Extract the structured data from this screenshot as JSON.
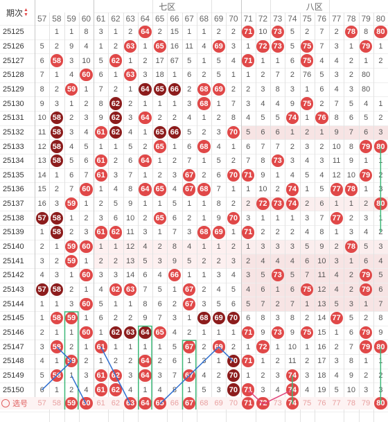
{
  "header": {
    "period_label": "期次",
    "zone7_label": "七区",
    "zone8_label": "八区",
    "columns": [
      "57",
      "58",
      "59",
      "60",
      "61",
      "62",
      "63",
      "64",
      "65",
      "66",
      "67",
      "68",
      "69",
      "70",
      "71",
      "72",
      "73",
      "74",
      "75",
      "76",
      "77",
      "78",
      "79",
      "80"
    ]
  },
  "footer": {
    "label": "选号",
    "selected": [
      "59",
      "60",
      "63",
      "64",
      "65",
      "67",
      "71",
      "72",
      "74",
      "80"
    ]
  },
  "rows": [
    {
      "period": "25125",
      "v": [
        "",
        "1",
        "1",
        "8",
        "3",
        "1",
        "2",
        "64",
        "2",
        "15",
        "1",
        "1",
        "2",
        "2",
        "71",
        "10",
        "73",
        "5",
        "2",
        "7",
        "2",
        "78",
        "8",
        "80"
      ]
    },
    {
      "period": "25126",
      "v": [
        "5",
        "2",
        "9",
        "4",
        "1",
        "2",
        "63",
        "1",
        "65",
        "16",
        "11",
        "4",
        "69",
        "3",
        "1",
        "72",
        "73",
        "5",
        "75",
        "7",
        "3",
        "1",
        "79",
        "1"
      ]
    },
    {
      "period": "25127",
      "v": [
        "6",
        "58",
        "3",
        "10",
        "5",
        "62",
        "1",
        "2",
        "17",
        "67",
        "5",
        "1",
        "5",
        "4",
        "71",
        "1",
        "1",
        "6",
        "75",
        "4",
        "4",
        "2",
        "1",
        "2"
      ]
    },
    {
      "period": "25128",
      "v": [
        "7",
        "1",
        "4",
        "60",
        "6",
        "1",
        "63",
        "3",
        "18",
        "1",
        "6",
        "2",
        "5",
        "1",
        "1",
        "2",
        "7",
        "2",
        "76",
        "5",
        "3",
        "2",
        "80",
        ""
      ]
    },
    {
      "period": "25129",
      "v": [
        "8",
        "2",
        "59",
        "1",
        "7",
        "2",
        "1",
        "64",
        "65",
        "66",
        "2",
        "68",
        "69",
        "2",
        "2",
        "3",
        "8",
        "3",
        "1",
        "6",
        "4",
        "3",
        "80",
        ""
      ]
    },
    {
      "period": "25130",
      "v": [
        "9",
        "3",
        "1",
        "2",
        "8",
        "62",
        "2",
        "1",
        "1",
        "1",
        "3",
        "68",
        "1",
        "7",
        "3",
        "4",
        "4",
        "9",
        "75",
        "2",
        "7",
        "5",
        "4",
        "1"
      ]
    },
    {
      "period": "25131",
      "v": [
        "10",
        "58",
        "2",
        "3",
        "9",
        "62",
        "3",
        "64",
        "2",
        "2",
        "4",
        "1",
        "2",
        "8",
        "4",
        "5",
        "5",
        "74",
        "1",
        "76",
        "8",
        "6",
        "5",
        "2"
      ]
    },
    {
      "period": "25132",
      "v": [
        "11",
        "58",
        "3",
        "4",
        "61",
        "62",
        "4",
        "1",
        "65",
        "66",
        "5",
        "2",
        "3",
        "70",
        "5",
        "6",
        "6",
        "1",
        "2",
        "1",
        "9",
        "7",
        "6",
        "3"
      ]
    },
    {
      "period": "25133",
      "v": [
        "12",
        "58",
        "4",
        "5",
        "1",
        "1",
        "5",
        "2",
        "65",
        "1",
        "6",
        "68",
        "4",
        "1",
        "6",
        "7",
        "7",
        "2",
        "3",
        "2",
        "10",
        "8",
        "79",
        "80"
      ]
    },
    {
      "period": "25134",
      "v": [
        "13",
        "58",
        "5",
        "6",
        "61",
        "2",
        "6",
        "64",
        "1",
        "2",
        "7",
        "1",
        "5",
        "2",
        "7",
        "8",
        "73",
        "3",
        "4",
        "3",
        "11",
        "9",
        "1",
        "1"
      ]
    },
    {
      "period": "25135",
      "v": [
        "14",
        "1",
        "6",
        "7",
        "61",
        "3",
        "7",
        "1",
        "2",
        "3",
        "67",
        "2",
        "6",
        "70",
        "71",
        "9",
        "1",
        "4",
        "5",
        "4",
        "12",
        "10",
        "79",
        "2"
      ]
    },
    {
      "period": "25136",
      "v": [
        "15",
        "2",
        "7",
        "60",
        "1",
        "4",
        "8",
        "64",
        "65",
        "4",
        "67",
        "68",
        "7",
        "1",
        "1",
        "10",
        "2",
        "74",
        "1",
        "5",
        "77",
        "78",
        "1",
        "3"
      ]
    },
    {
      "period": "25137",
      "v": [
        "16",
        "3",
        "59",
        "1",
        "2",
        "5",
        "9",
        "1",
        "1",
        "5",
        "1",
        "1",
        "8",
        "2",
        "2",
        "72",
        "73",
        "74",
        "2",
        "6",
        "1",
        "1",
        "2",
        "80"
      ]
    },
    {
      "period": "25138",
      "v": [
        "57",
        "58",
        "1",
        "2",
        "3",
        "6",
        "10",
        "2",
        "65",
        "6",
        "2",
        "1",
        "9",
        "70",
        "3",
        "1",
        "1",
        "1",
        "3",
        "7",
        "77",
        "2",
        "3",
        "1"
      ]
    },
    {
      "period": "25139",
      "v": [
        "1",
        "58",
        "2",
        "3",
        "61",
        "62",
        "11",
        "3",
        "1",
        "7",
        "3",
        "68",
        "69",
        "1",
        "71",
        "2",
        "2",
        "2",
        "4",
        "8",
        "1",
        "3",
        "4",
        "2"
      ]
    },
    {
      "period": "25140",
      "v": [
        "2",
        "1",
        "59",
        "60",
        "1",
        "1",
        "12",
        "4",
        "2",
        "8",
        "4",
        "1",
        "1",
        "2",
        "1",
        "3",
        "3",
        "3",
        "5",
        "9",
        "2",
        "78",
        "5",
        "3"
      ]
    },
    {
      "period": "25141",
      "v": [
        "3",
        "2",
        "59",
        "1",
        "2",
        "2",
        "13",
        "5",
        "3",
        "9",
        "5",
        "2",
        "2",
        "3",
        "2",
        "4",
        "4",
        "4",
        "6",
        "10",
        "3",
        "1",
        "6",
        "4"
      ]
    },
    {
      "period": "25142",
      "v": [
        "4",
        "3",
        "1",
        "60",
        "3",
        "3",
        "14",
        "6",
        "4",
        "66",
        "1",
        "1",
        "3",
        "4",
        "3",
        "5",
        "73",
        "5",
        "7",
        "11",
        "4",
        "2",
        "79",
        "5"
      ]
    },
    {
      "period": "25143",
      "v": [
        "57",
        "58",
        "2",
        "1",
        "4",
        "62",
        "63",
        "7",
        "5",
        "1",
        "67",
        "2",
        "4",
        "5",
        "4",
        "6",
        "1",
        "6",
        "75",
        "12",
        "4",
        "2",
        "79",
        "6"
      ]
    },
    {
      "period": "25144",
      "v": [
        "1",
        "1",
        "3",
        "60",
        "5",
        "1",
        "1",
        "8",
        "6",
        "2",
        "67",
        "3",
        "5",
        "6",
        "5",
        "7",
        "2",
        "7",
        "1",
        "13",
        "5",
        "3",
        "1",
        "7"
      ]
    },
    {
      "period": "25145",
      "v": [
        "1",
        "58",
        "59",
        "1",
        "6",
        "2",
        "2",
        "9",
        "7",
        "3",
        "1",
        "68",
        "69",
        "70",
        "6",
        "8",
        "3",
        "8",
        "2",
        "14",
        "77",
        "5",
        "2",
        "8"
      ]
    },
    {
      "period": "25146",
      "v": [
        "2",
        "1",
        "1",
        "60",
        "1",
        "62",
        "63",
        "64",
        "65",
        "4",
        "2",
        "1",
        "1",
        "1",
        "71",
        "9",
        "73",
        "9",
        "75",
        "15",
        "1",
        "6",
        "79",
        "9"
      ]
    },
    {
      "period": "25147",
      "v": [
        "3",
        "58",
        "2",
        "1",
        "61",
        "1",
        "1",
        "1",
        "1",
        "5",
        "67",
        "2",
        "69",
        "2",
        "1",
        "72",
        "1",
        "10",
        "1",
        "16",
        "2",
        "7",
        "79",
        "80"
      ]
    },
    {
      "period": "25148",
      "v": [
        "4",
        "1",
        "59",
        "2",
        "1",
        "2",
        "2",
        "64",
        "2",
        "6",
        "1",
        "3",
        "1",
        "70",
        "71",
        "1",
        "2",
        "11",
        "2",
        "17",
        "3",
        "8",
        "1",
        "1"
      ]
    },
    {
      "period": "25149",
      "v": [
        "5",
        "58",
        "1",
        "3",
        "61",
        "62",
        "3",
        "64",
        "3",
        "7",
        "67",
        "4",
        "2",
        "70",
        "1",
        "2",
        "3",
        "74",
        "3",
        "18",
        "4",
        "9",
        "2",
        "2"
      ]
    },
    {
      "period": "25150",
      "v": [
        "6",
        "1",
        "2",
        "4",
        "61",
        "62",
        "4",
        "1",
        "4",
        "8",
        "1",
        "5",
        "3",
        "70",
        "71",
        "3",
        "4",
        "74",
        "4",
        "19",
        "5",
        "10",
        "3",
        "3"
      ]
    }
  ]
}
